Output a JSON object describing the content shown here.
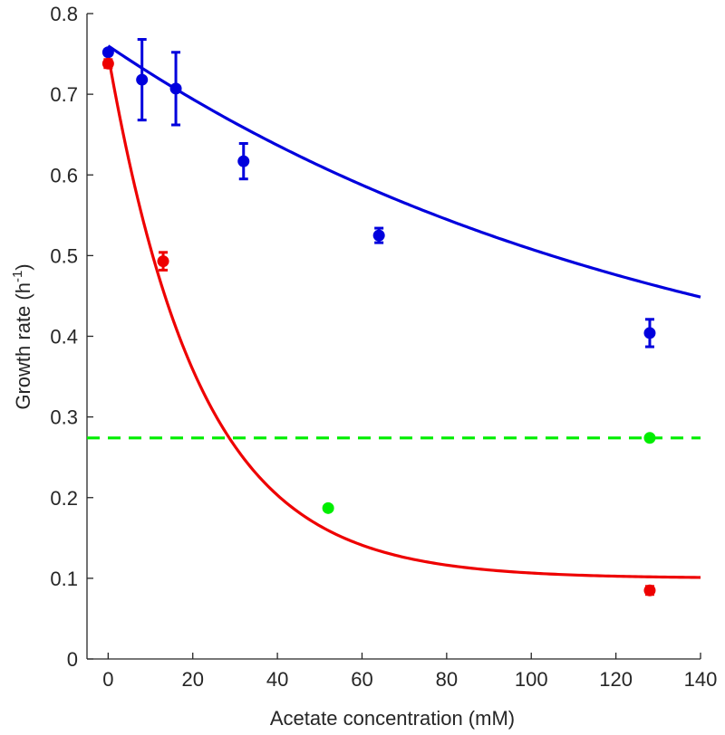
{
  "chart_data": {
    "type": "scatter",
    "title": "",
    "xlabel": "Acetate concentration (mM)",
    "ylabel": {
      "main": "Growth rate (h",
      "sup": "-1",
      "close": ")"
    },
    "xlim": [
      -5,
      140
    ],
    "ylim": [
      0,
      0.8
    ],
    "xticks": [
      0,
      20,
      40,
      60,
      80,
      100,
      120,
      140
    ],
    "yticks": [
      0,
      0.1,
      0.2,
      0.3,
      0.4,
      0.5,
      0.6,
      0.7,
      0.8
    ],
    "xtick_labels": [
      "0",
      "20",
      "40",
      "60",
      "80",
      "100",
      "120",
      "140"
    ],
    "ytick_labels": [
      "0",
      "0.1",
      "0.2",
      "0.3",
      "0.4",
      "0.5",
      "0.6",
      "0.7",
      "0.8"
    ],
    "grid": false,
    "series": [
      {
        "name": "blue data",
        "color": "#0000dd",
        "x": [
          0,
          8,
          16,
          32,
          64,
          128
        ],
        "y": [
          0.752,
          0.718,
          0.707,
          0.617,
          0.525,
          0.404
        ],
        "err": [
          0.003,
          0.05,
          0.045,
          0.022,
          0.009,
          0.017
        ]
      },
      {
        "name": "red data",
        "color": "#ee0000",
        "x": [
          0,
          13,
          128
        ],
        "y": [
          0.738,
          0.493,
          0.085
        ],
        "err": [
          0.005,
          0.011,
          0.005
        ]
      },
      {
        "name": "green data",
        "color": "#00ee00",
        "x": [
          52,
          128
        ],
        "y": [
          0.187,
          0.274
        ],
        "err": []
      }
    ],
    "fits": [
      {
        "name": "blue fit",
        "color": "#0000dd",
        "style": "solid",
        "model": "exp",
        "a": 0.2736,
        "b": 0.4864,
        "k": 0.0073,
        "xrange": [
          0,
          140
        ]
      },
      {
        "name": "red fit",
        "color": "#ee0000",
        "style": "solid",
        "model": "exp",
        "a": 0.1,
        "b": 0.649,
        "k": 0.046,
        "xrange": [
          0,
          140
        ]
      },
      {
        "name": "green reference",
        "color": "#00ee00",
        "style": "dashed",
        "model": "const",
        "value": 0.274,
        "xrange": [
          -5,
          140
        ]
      }
    ]
  }
}
